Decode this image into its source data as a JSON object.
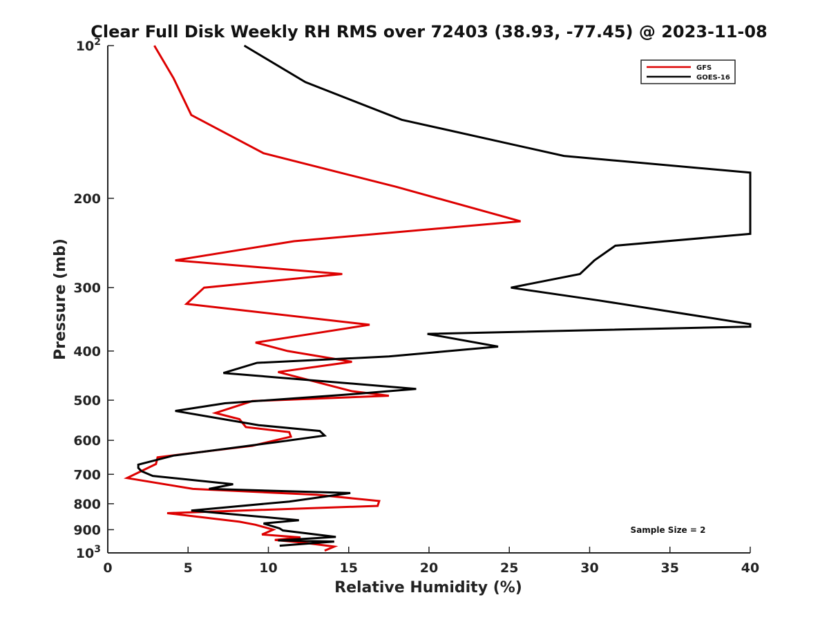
{
  "chart_data": {
    "type": "line",
    "title": "Clear Full Disk Weekly RH RMS over 72403 (38.93, -77.45) @ 2023-11-08",
    "xlabel": "Relative Humidity (%)",
    "ylabel": "Pressure (mb)",
    "xlim": [
      0,
      40
    ],
    "ylim": [
      1000,
      100
    ],
    "y_scale": "log",
    "y_reversed": true,
    "x_ticks": [
      "0",
      "5",
      "10",
      "15",
      "20",
      "25",
      "30",
      "35",
      "40"
    ],
    "y_ticks": [
      {
        "value": 100,
        "label": "10",
        "sup": "2"
      },
      {
        "value": 200,
        "label": "200"
      },
      {
        "value": 300,
        "label": "300"
      },
      {
        "value": 400,
        "label": "400"
      },
      {
        "value": 500,
        "label": "500"
      },
      {
        "value": 600,
        "label": "600"
      },
      {
        "value": 700,
        "label": "700"
      },
      {
        "value": 800,
        "label": "800"
      },
      {
        "value": 900,
        "label": "900"
      },
      {
        "value": 1000,
        "label": "10",
        "sup": "3"
      }
    ],
    "grid": false,
    "legend_position": "top-right",
    "annotation": "Sample Size = 2",
    "series": [
      {
        "name": "GFS",
        "color": "#dd0000",
        "points": [
          [
            2.9,
            100
          ],
          [
            4.1,
            116
          ],
          [
            5.2,
            137
          ],
          [
            9.7,
            163
          ],
          [
            18.0,
            190
          ],
          [
            25.7,
            222
          ],
          [
            11.6,
            243
          ],
          [
            4.2,
            265
          ],
          [
            14.6,
            282
          ],
          [
            6.0,
            300
          ],
          [
            4.9,
            323
          ],
          [
            16.3,
            355
          ],
          [
            9.2,
            385
          ],
          [
            11.2,
            400
          ],
          [
            15.2,
            420
          ],
          [
            10.6,
            440
          ],
          [
            15.2,
            480
          ],
          [
            17.5,
            490
          ],
          [
            9.0,
            502
          ],
          [
            6.7,
            530
          ],
          [
            8.2,
            545
          ],
          [
            8.6,
            565
          ],
          [
            11.3,
            578
          ],
          [
            11.4,
            590
          ],
          [
            9.0,
            615
          ],
          [
            3.1,
            648
          ],
          [
            3.0,
            668
          ],
          [
            1.2,
            712
          ],
          [
            5.3,
            748
          ],
          [
            13.0,
            768
          ],
          [
            16.9,
            790
          ],
          [
            16.8,
            808
          ],
          [
            3.7,
            835
          ],
          [
            8.2,
            868
          ],
          [
            9.2,
            880
          ],
          [
            10.3,
            900
          ],
          [
            9.6,
            920
          ],
          [
            12.0,
            932
          ],
          [
            10.4,
            943
          ],
          [
            12.2,
            955
          ],
          [
            14.1,
            972
          ],
          [
            13.5,
            990
          ]
        ]
      },
      {
        "name": "GOES-16",
        "color": "#000000",
        "points": [
          [
            8.5,
            100
          ],
          [
            12.3,
            118
          ],
          [
            18.3,
            140
          ],
          [
            28.4,
            165
          ],
          [
            40.0,
            178
          ],
          [
            40.0,
            235
          ],
          [
            31.6,
            248
          ],
          [
            30.3,
            265
          ],
          [
            29.4,
            282
          ],
          [
            25.1,
            300
          ],
          [
            30.6,
            318
          ],
          [
            40.0,
            354
          ],
          [
            40.0,
            358
          ],
          [
            19.9,
            370
          ],
          [
            24.3,
            392
          ],
          [
            17.5,
            410
          ],
          [
            9.3,
            422
          ],
          [
            7.2,
            442
          ],
          [
            19.2,
            475
          ],
          [
            14.7,
            488
          ],
          [
            7.3,
            507
          ],
          [
            4.2,
            525
          ],
          [
            7.2,
            545
          ],
          [
            9.4,
            560
          ],
          [
            13.2,
            575
          ],
          [
            13.5,
            587
          ],
          [
            10.5,
            605
          ],
          [
            4.1,
            643
          ],
          [
            1.9,
            670
          ],
          [
            1.9,
            680
          ],
          [
            2.1,
            690
          ],
          [
            2.8,
            705
          ],
          [
            7.8,
            732
          ],
          [
            6.3,
            748
          ],
          [
            15.1,
            762
          ],
          [
            11.3,
            792
          ],
          [
            5.2,
            825
          ],
          [
            11.9,
            862
          ],
          [
            9.7,
            875
          ],
          [
            10.7,
            895
          ],
          [
            10.9,
            903
          ],
          [
            14.2,
            930
          ],
          [
            10.6,
            945
          ],
          [
            14.1,
            950
          ],
          [
            10.7,
            968
          ]
        ]
      }
    ]
  }
}
